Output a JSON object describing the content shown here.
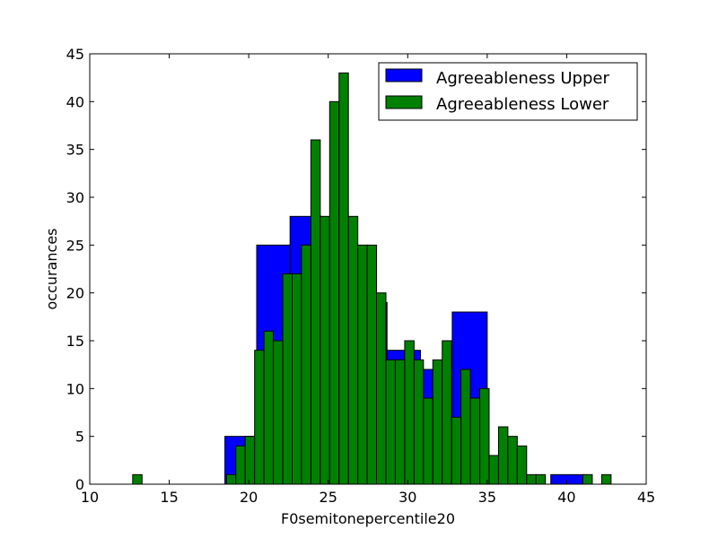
{
  "chart_data": {
    "type": "bar",
    "xlabel": "F0semitonepercentile20",
    "ylabel": "occurances",
    "xlim": [
      10,
      45
    ],
    "ylim": [
      0,
      45
    ],
    "xticks": [
      10,
      15,
      20,
      25,
      30,
      35,
      40,
      45
    ],
    "yticks": [
      0,
      5,
      10,
      15,
      20,
      25,
      30,
      35,
      40,
      45
    ],
    "legend_position": "top-right",
    "series": [
      {
        "name": "Agreeableness Upper",
        "color": "#0000ff",
        "bins": [
          {
            "x0": 18.5,
            "x1": 20.5,
            "count": 5
          },
          {
            "x0": 20.5,
            "x1": 22.6,
            "count": 25
          },
          {
            "x0": 22.6,
            "x1": 24.6,
            "count": 28
          },
          {
            "x0": 24.6,
            "x1": 26.7,
            "count": 27
          },
          {
            "x0": 26.7,
            "x1": 28.7,
            "count": 19
          },
          {
            "x0": 28.7,
            "x1": 30.8,
            "count": 14
          },
          {
            "x0": 30.8,
            "x1": 32.8,
            "count": 12
          },
          {
            "x0": 32.8,
            "x1": 35.0,
            "count": 18
          },
          {
            "x0": 35.0,
            "x1": 36.9,
            "count": 2
          },
          {
            "x0": 39.0,
            "x1": 41.1,
            "count": 1
          }
        ]
      },
      {
        "name": "Agreeableness Lower",
        "color": "#008000",
        "bin_start": 12.7,
        "bin_width": 0.59,
        "counts": [
          1,
          0,
          0,
          0,
          0,
          0,
          0,
          0,
          0,
          0,
          1,
          4,
          5,
          14,
          16,
          15,
          22,
          22,
          25,
          36,
          28,
          40,
          43,
          28,
          25,
          25,
          20,
          13,
          13,
          15,
          13,
          9,
          13,
          15,
          7,
          12,
          9,
          10,
          3,
          6,
          5,
          4,
          1,
          1,
          0,
          0,
          0,
          0,
          1,
          0,
          1
        ]
      }
    ]
  }
}
